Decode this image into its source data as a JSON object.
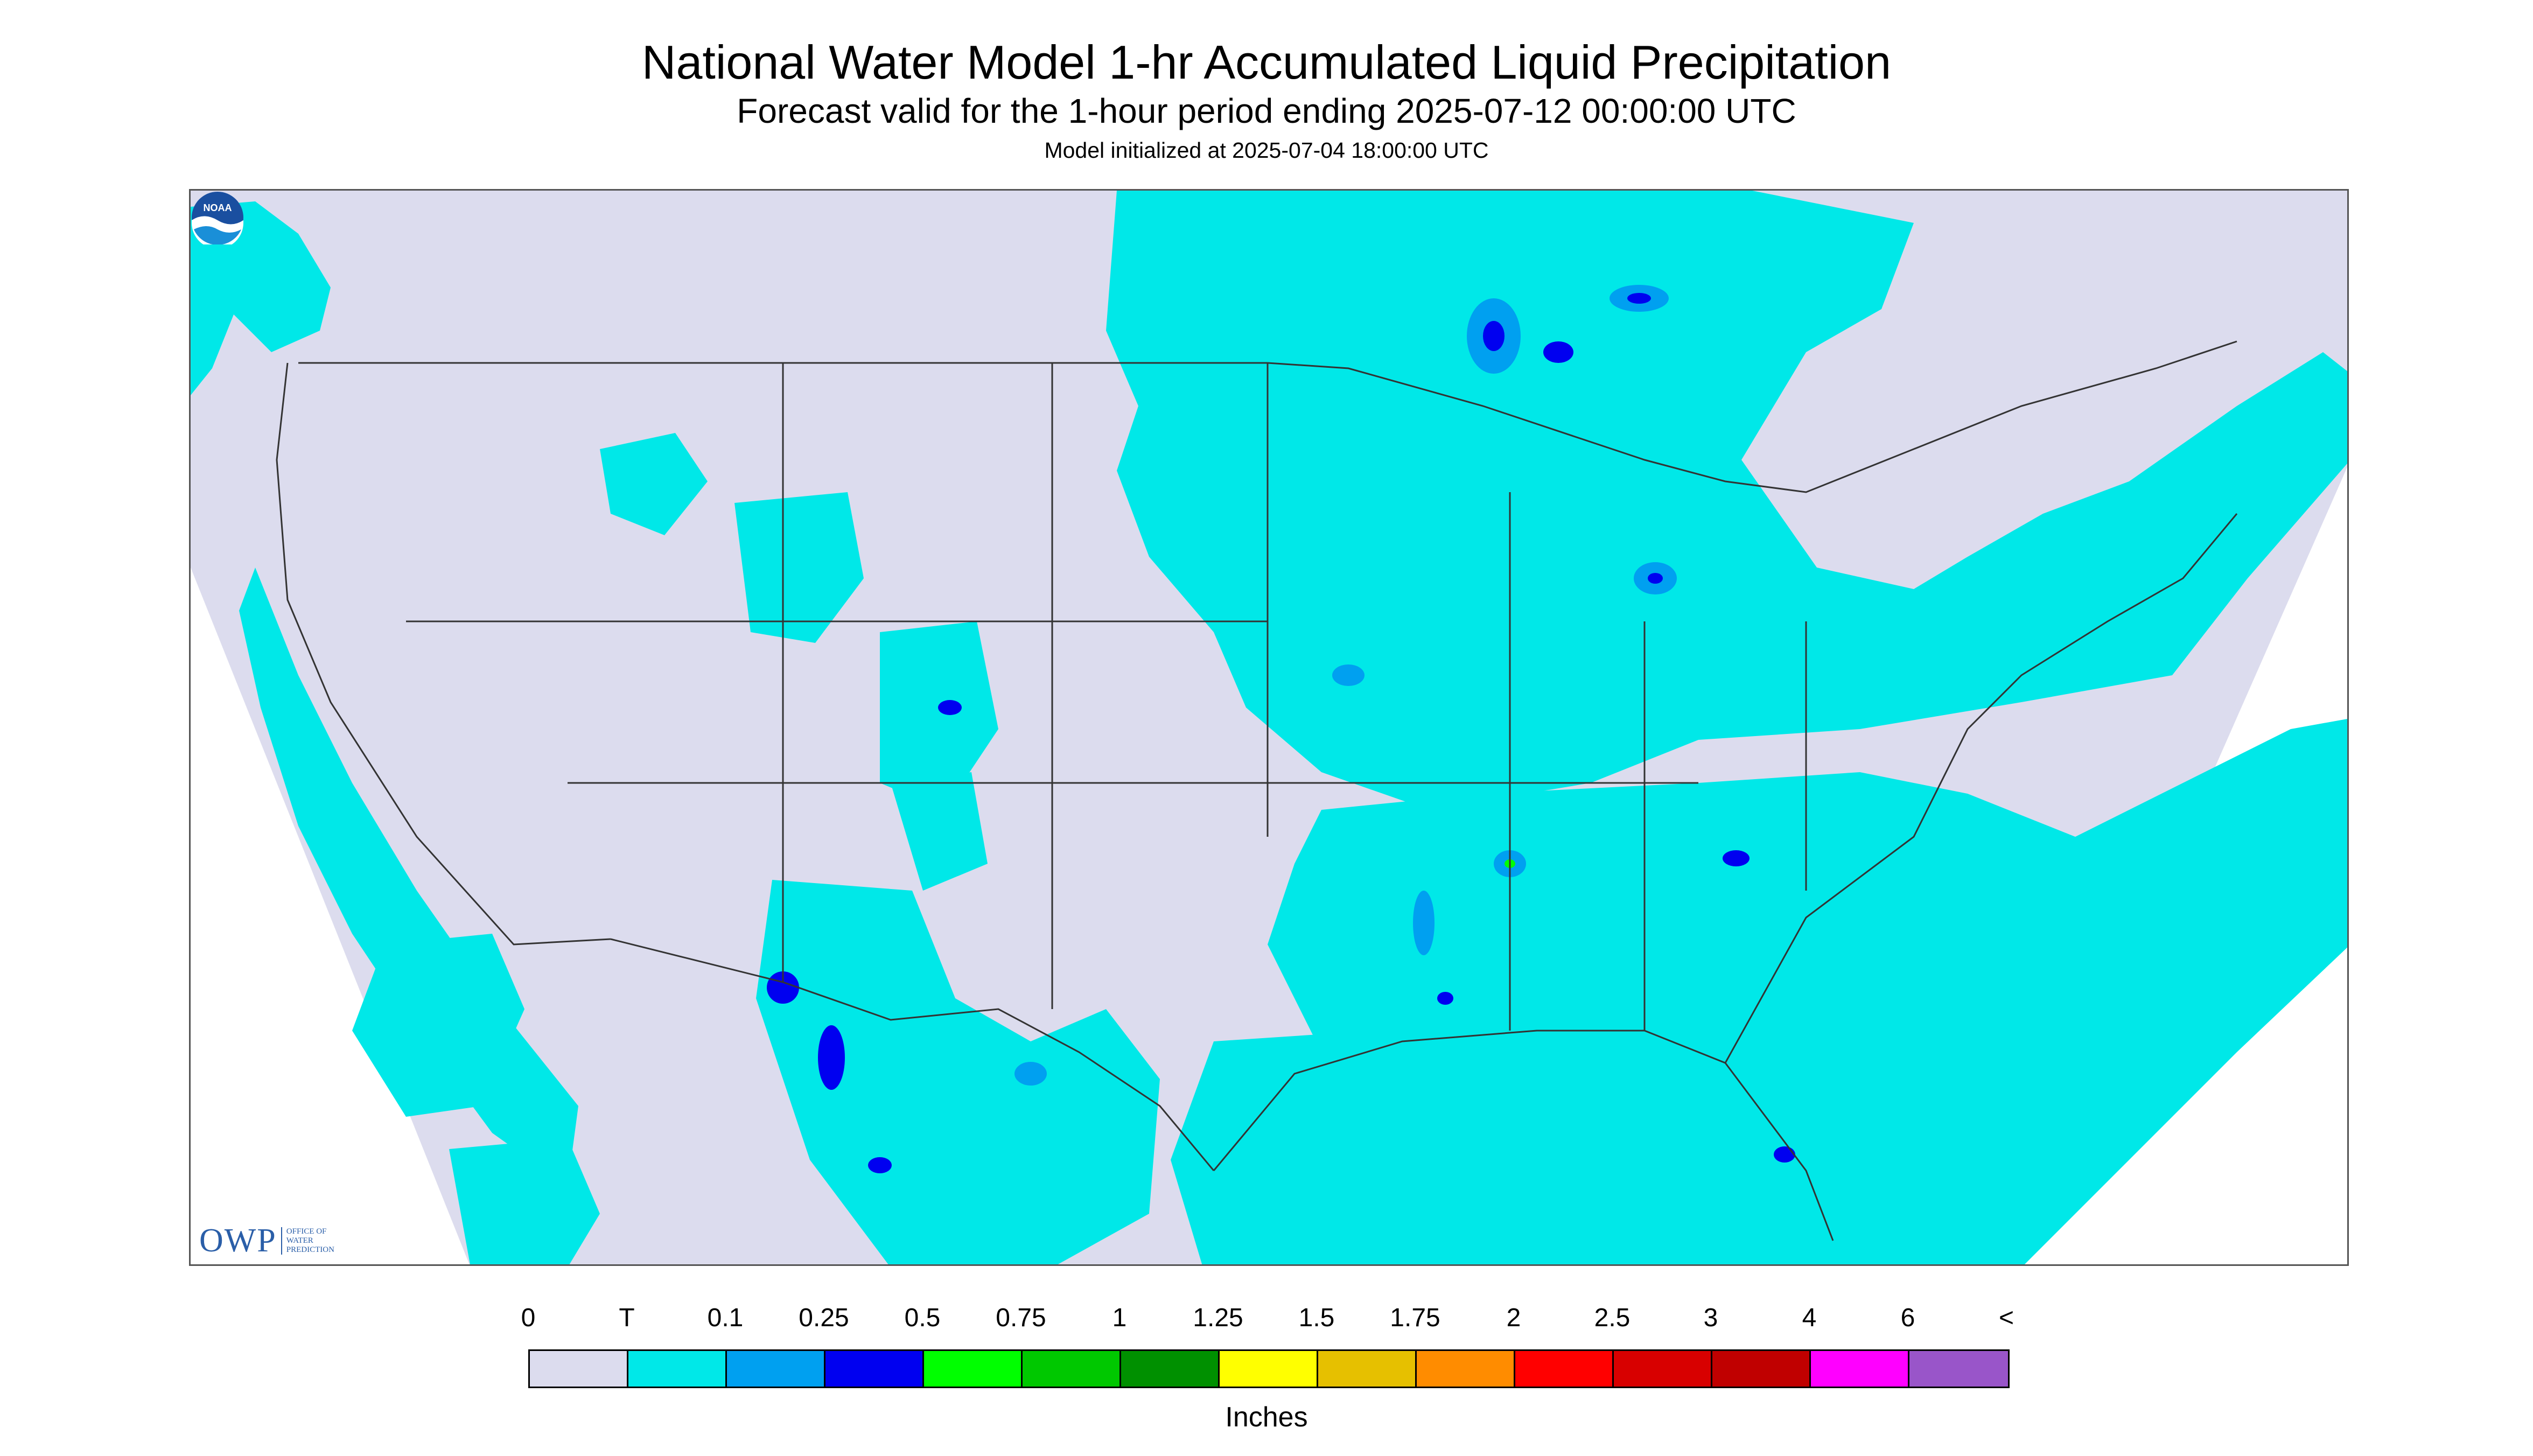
{
  "title": "National Water Model 1-hr Accumulated Liquid Precipitation",
  "subtitle": "Forecast valid for the 1-hour period ending 2025-07-12 00:00:00 UTC",
  "init": "Model initialized at 2025-07-04 18:00:00 UTC",
  "logos": {
    "owp_main": "OWP",
    "owp_sub": [
      "OFFICE OF",
      "WATER",
      "PREDICTION"
    ],
    "noaa": "NOAA"
  },
  "legend": {
    "labels": [
      "0",
      "T",
      "0.1",
      "0.25",
      "0.5",
      "0.75",
      "1",
      "1.25",
      "1.5",
      "1.75",
      "2",
      "2.5",
      "3",
      "4",
      "6",
      "<"
    ],
    "colors": [
      "#dcdcee",
      "#00e8e8",
      "#00a0f0",
      "#0000f0",
      "#00ff00",
      "#00c800",
      "#009000",
      "#ffff00",
      "#e6c000",
      "#ff8c00",
      "#ff0000",
      "#d80000",
      "#c00000",
      "#ff00ff",
      "#9955c9"
    ],
    "units": "Inches"
  },
  "colors": {
    "background": "#dcdcee",
    "trace": "#00e8e8",
    "light_blue": "#00a0f0",
    "blue": "#0000f0",
    "green": "#00ff00",
    "outline": "#333333"
  }
}
